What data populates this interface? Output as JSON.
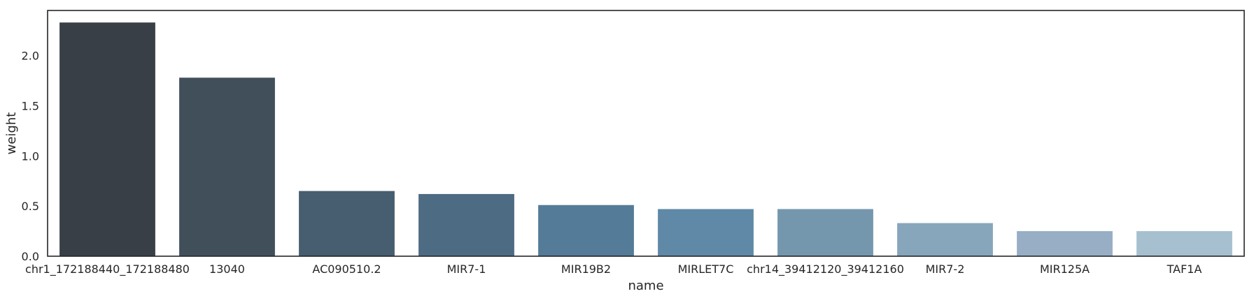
{
  "chart_data": {
    "type": "bar",
    "xlabel": "name",
    "ylabel": "weight",
    "ylim": [
      0,
      2.45
    ],
    "yticks": [
      "0.0",
      "0.5",
      "1.0",
      "1.5",
      "2.0"
    ],
    "categories": [
      "chr1_172188440_172188480",
      "13040",
      "AC090510.2",
      "MIR7-1",
      "MIR19B2",
      "MIRLET7C",
      "chr14_39412120_39412160",
      "MIR7-2",
      "MIR125A",
      "TAF1A"
    ],
    "values": [
      2.33,
      1.78,
      0.65,
      0.62,
      0.51,
      0.47,
      0.47,
      0.33,
      0.25,
      0.25
    ],
    "colors": [
      "#383f46",
      "#414f5b",
      "#475d70",
      "#4d6b83",
      "#547b97",
      "#5f89a6",
      "#7597ae",
      "#87a6bc",
      "#97aec5",
      "#a7c0d0"
    ],
    "grid": false,
    "legend": "none"
  }
}
